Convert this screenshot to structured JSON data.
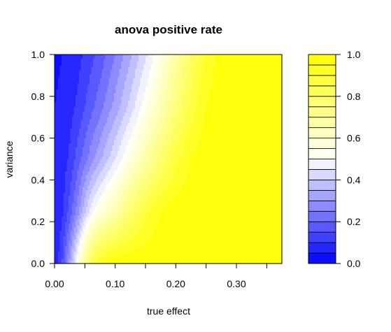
{
  "chart_data": {
    "type": "heatmap",
    "title": "anova positive rate",
    "xlabel": "true effect",
    "ylabel": "variance",
    "xlim": [
      0,
      0.375
    ],
    "ylim": [
      0,
      1
    ],
    "x_ticks": [
      0.0,
      0.05,
      0.1,
      0.15,
      0.2,
      0.25,
      0.3,
      0.35
    ],
    "x_tick_labels": [
      "0.00",
      "0.10",
      "0.20",
      "0.30"
    ],
    "x_tick_label_values": [
      0.0,
      0.1,
      0.2,
      0.3
    ],
    "y_ticks": [
      0.0,
      0.2,
      0.4,
      0.6,
      0.8,
      1.0
    ],
    "y_tick_labels": [
      "0.0",
      "0.2",
      "0.4",
      "0.6",
      "0.8",
      "1.0"
    ],
    "x": [
      0.0,
      0.0125,
      0.025,
      0.0375,
      0.05,
      0.0625,
      0.075,
      0.1,
      0.125,
      0.15,
      0.175,
      0.2,
      0.225,
      0.25,
      0.275,
      0.3,
      0.325,
      0.35,
      0.375
    ],
    "y": [
      0.0,
      0.25,
      0.5,
      0.75,
      1.0
    ],
    "z_ref": {
      "x": [
        0.0,
        0.0125,
        0.025,
        0.0375,
        0.05,
        0.0625,
        0.075,
        0.1,
        0.125,
        0.15,
        0.175,
        0.2,
        0.225,
        0.25,
        0.275,
        0.3,
        0.325,
        0.35,
        0.375
      ],
      "rows": [
        [
          0.05,
          0.15,
          0.32,
          0.52,
          0.72,
          0.86,
          0.94,
          0.99,
          1.0,
          1.0,
          1.0,
          1.0,
          1.0,
          1.0,
          1.0,
          1.0,
          1.0,
          1.0,
          1.0
        ],
        [
          0.05,
          0.09,
          0.17,
          0.27,
          0.39,
          0.49,
          0.56,
          0.66,
          0.78,
          0.88,
          0.95,
          0.98,
          0.995,
          1.0,
          1.0,
          1.0,
          1.0,
          1.0,
          1.0
        ],
        [
          0.05,
          0.07,
          0.11,
          0.17,
          0.23,
          0.29,
          0.34,
          0.45,
          0.56,
          0.67,
          0.78,
          0.88,
          0.95,
          0.985,
          1.0,
          1.0,
          1.0,
          1.0,
          1.0
        ],
        [
          0.05,
          0.06,
          0.08,
          0.11,
          0.15,
          0.19,
          0.23,
          0.32,
          0.42,
          0.53,
          0.64,
          0.76,
          0.87,
          0.95,
          0.985,
          1.0,
          1.0,
          1.0,
          1.0
        ],
        [
          0.04,
          0.05,
          0.06,
          0.08,
          0.11,
          0.14,
          0.17,
          0.25,
          0.34,
          0.44,
          0.55,
          0.67,
          0.8,
          0.91,
          0.97,
          1.0,
          1.0,
          1.0,
          1.0
        ]
      ]
    },
    "levels": [
      0.0,
      0.05,
      0.1,
      0.15,
      0.2,
      0.25,
      0.3,
      0.35,
      0.4,
      0.45,
      0.5,
      0.55,
      0.6,
      0.65,
      0.7,
      0.75,
      0.8,
      0.85,
      0.9,
      0.95,
      1.0
    ],
    "legend": {
      "position": "right",
      "tick_labels": [
        "0.0",
        "0.2",
        "0.4",
        "0.6",
        "0.8",
        "1.0"
      ],
      "tick_values": [
        0.0,
        0.2,
        0.4,
        0.6,
        0.8,
        1.0
      ]
    },
    "colors": {
      "low": "#0000ff",
      "mid": "#ffffff",
      "high": "#ffff00"
    }
  }
}
